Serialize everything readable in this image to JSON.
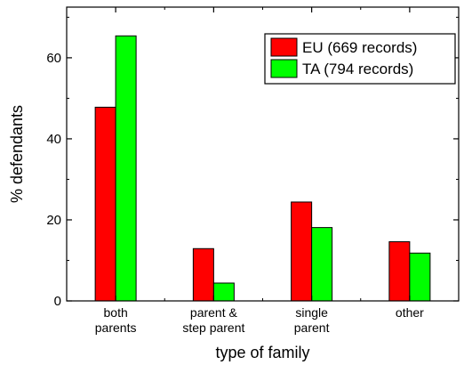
{
  "chart_data": {
    "type": "bar",
    "categories": [
      [
        "both",
        "parents"
      ],
      [
        "parent &",
        "step parent"
      ],
      [
        "single",
        "parent"
      ],
      [
        "other"
      ]
    ],
    "series": [
      {
        "name": "EU (669 records)",
        "color": "#ff0000",
        "values": [
          47.8,
          12.9,
          24.4,
          14.6
        ]
      },
      {
        "name": "TA (794 records)",
        "color": "#00ff00",
        "values": [
          65.4,
          4.4,
          18.1,
          11.8
        ]
      }
    ],
    "xlabel": "type of family",
    "ylabel": "% defendants",
    "ylim": [
      0,
      72.5
    ],
    "yticks": [
      0,
      20,
      40,
      60
    ],
    "grid": false,
    "legend": "top-right"
  }
}
